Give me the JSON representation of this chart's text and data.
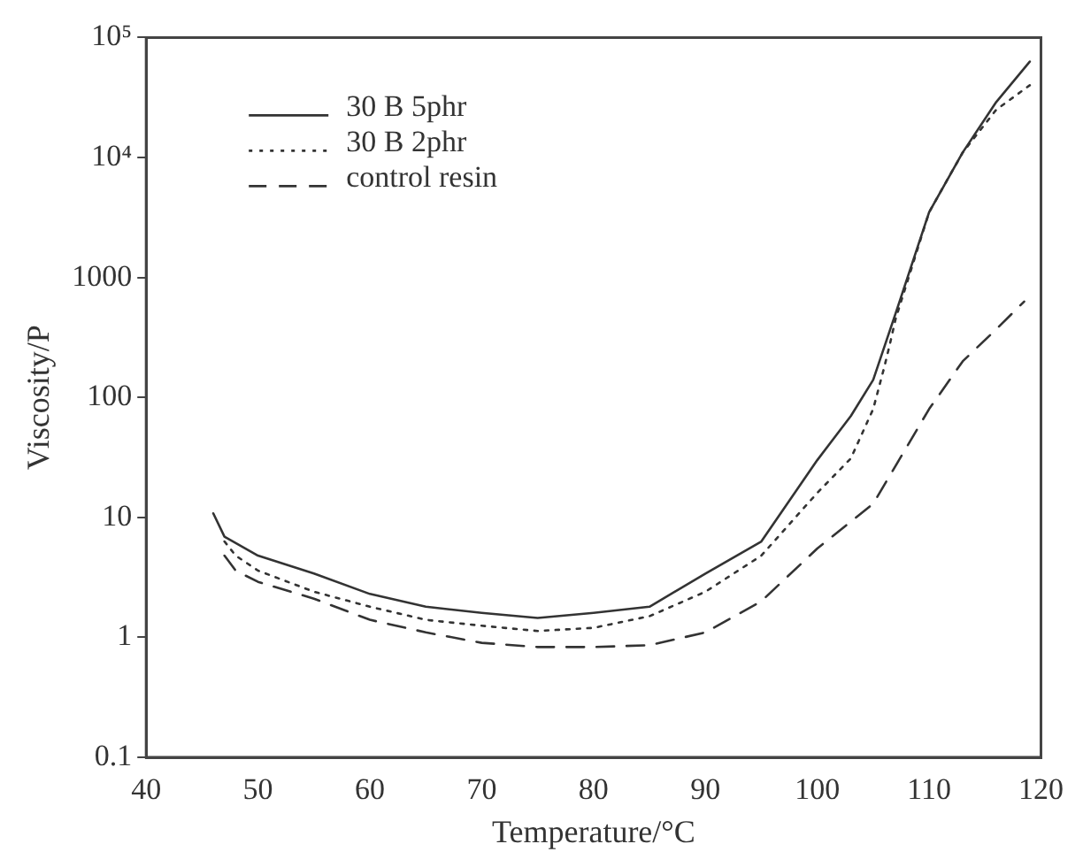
{
  "chart_data": {
    "type": "line",
    "xlabel": "Temperature/°C",
    "ylabel": "Viscosity/P",
    "log": "y",
    "xlim": [
      40,
      120
    ],
    "xticks": [
      40,
      50,
      60,
      70,
      80,
      90,
      100,
      110,
      120
    ],
    "ylim": [
      0.1,
      100000
    ],
    "yticks": [
      {
        "value": 0.1,
        "label": "0.1"
      },
      {
        "value": 1,
        "label": "1"
      },
      {
        "value": 10,
        "label": "10"
      },
      {
        "value": 100,
        "label": "100"
      },
      {
        "value": 1000,
        "label": "1000"
      },
      {
        "value": 10000,
        "label": "10⁴"
      },
      {
        "value": 100000,
        "label": "10⁵"
      }
    ],
    "grid": false,
    "legend": "top left",
    "marker": "none",
    "series": [
      {
        "name": "30 B 5phr",
        "color": "#333333",
        "line_style": "solid",
        "x": [
          46,
          47,
          50,
          55,
          60,
          65,
          70,
          75,
          80,
          85,
          90,
          95,
          100,
          103,
          105,
          107,
          110,
          113,
          116,
          119
        ],
        "values": [
          10.8,
          6.9,
          4.8,
          3.4,
          2.3,
          1.8,
          1.6,
          1.45,
          1.6,
          1.8,
          3.4,
          6.3,
          30,
          70,
          140,
          500,
          3500,
          11000,
          29000,
          63000
        ]
      },
      {
        "name": "30 B 2phr",
        "color": "#333333",
        "line_style": "dotted",
        "x": [
          47,
          48,
          50,
          55,
          60,
          65,
          70,
          75,
          80,
          85,
          90,
          95,
          100,
          103,
          105,
          106,
          106.5,
          107,
          110,
          113,
          116,
          119
        ],
        "values": [
          6.3,
          4.8,
          3.6,
          2.4,
          1.8,
          1.4,
          1.25,
          1.13,
          1.2,
          1.5,
          2.4,
          4.8,
          16,
          31,
          80,
          180,
          280,
          450,
          3500,
          11000,
          25000,
          40000
        ]
      },
      {
        "name": "control resin",
        "color": "#333333",
        "line_style": "dashed",
        "x": [
          47,
          48,
          50,
          55,
          60,
          65,
          70,
          75,
          80,
          85,
          90,
          95,
          100,
          105,
          110,
          113,
          116,
          118.5
        ],
        "values": [
          4.8,
          3.6,
          2.9,
          2.1,
          1.4,
          1.1,
          0.9,
          0.83,
          0.83,
          0.86,
          1.1,
          2,
          5.5,
          13,
          80,
          200,
          370,
          630
        ]
      }
    ]
  }
}
